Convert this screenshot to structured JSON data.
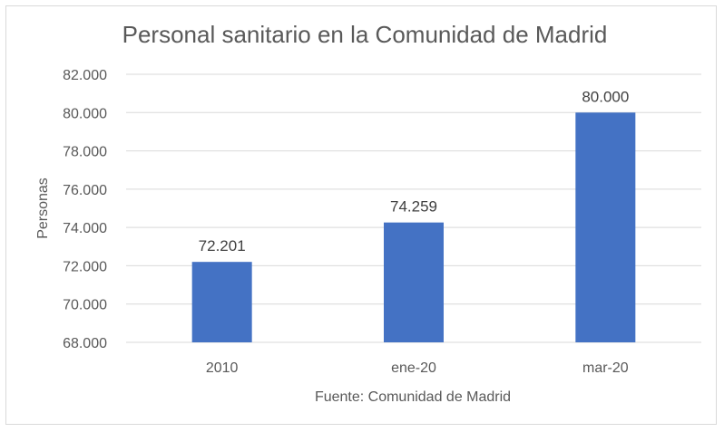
{
  "chart_data": {
    "type": "bar",
    "title": "Personal sanitario en la Comunidad de Madrid",
    "ylabel": "Personas",
    "xlabel": "Fuente: Comunidad de Madrid",
    "categories": [
      "2010",
      "ene-20",
      "mar-20"
    ],
    "values": [
      72201,
      74259,
      80000
    ],
    "value_labels": [
      "72.201",
      "74.259",
      "80.000"
    ],
    "ylim": [
      68000,
      82000
    ],
    "yticks": [
      68000,
      70000,
      72000,
      74000,
      76000,
      78000,
      80000,
      82000
    ],
    "ytick_labels": [
      "68.000",
      "70.000",
      "72.000",
      "74.000",
      "76.000",
      "78.000",
      "80.000",
      "82.000"
    ],
    "grid": true,
    "legend": "none",
    "bar_color": "#4472c4",
    "grid_color": "#d9d9d9"
  }
}
